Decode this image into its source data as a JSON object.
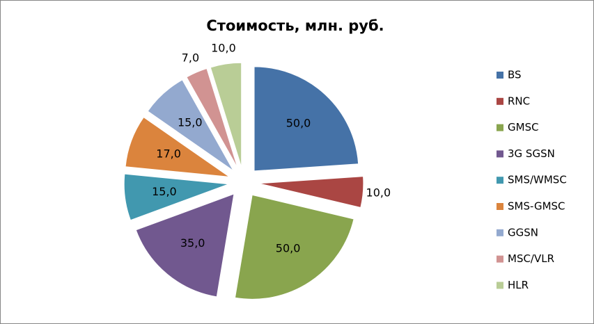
{
  "chart_data": {
    "type": "pie",
    "title": "Стоимость, млн. руб.",
    "categories": [
      "BS",
      "RNC",
      "GMSC",
      "3G SGSN",
      "SMS/WMSC",
      "SMS-GMSC",
      "GGSN",
      "MSC/VLR",
      "HLR"
    ],
    "values": [
      50,
      10,
      50,
      35,
      15,
      17,
      15,
      7,
      10
    ],
    "value_labels": [
      "50,0",
      "10,0",
      "50,0",
      "35,0",
      "15,0",
      "17,0",
      "15,0",
      "7,0",
      "10,0"
    ],
    "colors": [
      "#4572A7",
      "#AA4643",
      "#89A54E",
      "#71588F",
      "#4198AF",
      "#DB843D",
      "#93A9CF",
      "#D19392",
      "#B9CD96"
    ],
    "exploded": true,
    "legend": "right"
  }
}
